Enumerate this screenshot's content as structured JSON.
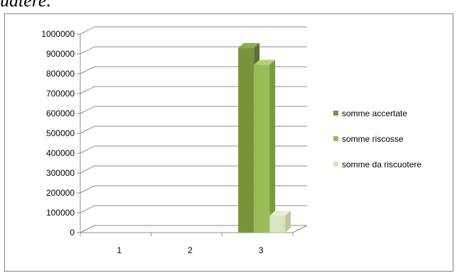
{
  "page": {
    "cut_off_heading": "uatere."
  },
  "colors": {
    "background": "#ffffff",
    "grid": "#8c8c8c",
    "somme_accertate": "#77933c",
    "somme_riscosse": "#9bbb59",
    "somme_da_riscuotere": "#d7e4bd"
  },
  "chart_data": {
    "type": "bar",
    "categories": [
      "1",
      "2",
      "3"
    ],
    "series": [
      {
        "name": "somme accertate",
        "values": [
          0,
          0,
          930000
        ]
      },
      {
        "name": "somme riscosse",
        "values": [
          0,
          0,
          845000
        ]
      },
      {
        "name": "somme da riscuotere",
        "values": [
          0,
          0,
          85000
        ]
      }
    ],
    "ylim": [
      0,
      1000000
    ],
    "y_ticks": [
      "0",
      "100000",
      "200000",
      "300000",
      "400000",
      "500000",
      "600000",
      "700000",
      "800000",
      "900000",
      "1000000"
    ],
    "grid": true,
    "three_d": true,
    "legend_position": "right",
    "title": "",
    "xlabel": "",
    "ylabel": ""
  }
}
